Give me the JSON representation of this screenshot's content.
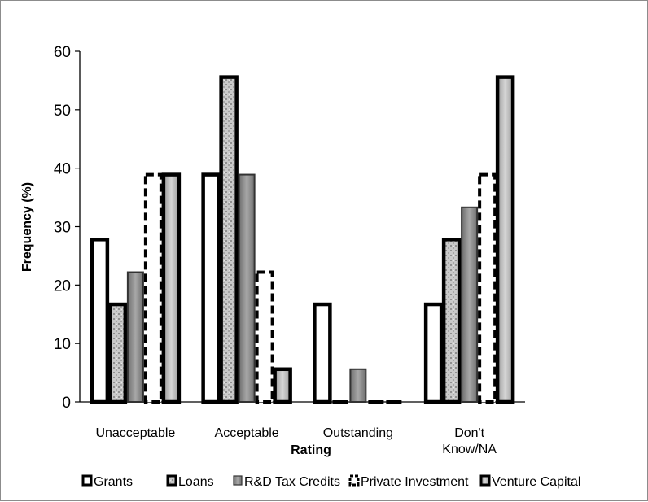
{
  "chart_data": {
    "type": "bar",
    "title": "",
    "xlabel": "Rating",
    "ylabel": "Frequency (%)",
    "ylim": [
      0,
      60
    ],
    "yticks": [
      0,
      10,
      20,
      30,
      40,
      50,
      60
    ],
    "grid": false,
    "legend_position": "bottom",
    "categories": [
      [
        "Unacceptable"
      ],
      [
        "Acceptable"
      ],
      [
        "Outstanding"
      ],
      [
        "Don't",
        "Know/NA"
      ]
    ],
    "series": [
      {
        "name": "Grants",
        "values": [
          27.8,
          38.9,
          16.7,
          16.7
        ],
        "color": "#ffffff"
      },
      {
        "name": "Loans",
        "values": [
          16.7,
          55.6,
          0,
          27.8
        ],
        "color": "#c8c8c8"
      },
      {
        "name": "R&D Tax Credits",
        "values": [
          22.2,
          38.9,
          5.6,
          33.3
        ],
        "color": "#8a8a8a"
      },
      {
        "name": "Private Investment",
        "values": [
          38.9,
          22.2,
          0,
          38.9
        ],
        "color": "#ffffff"
      },
      {
        "name": "Venture Capital",
        "values": [
          38.9,
          5.6,
          0,
          55.6
        ],
        "color": "#bdbdbd"
      }
    ]
  }
}
